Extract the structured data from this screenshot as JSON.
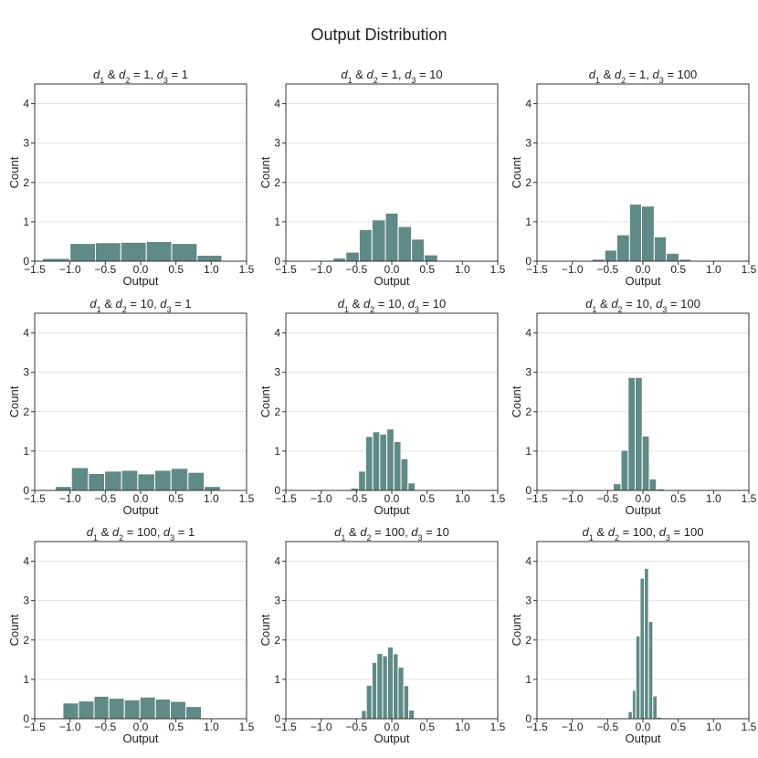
{
  "figure_title": "Output Distribution",
  "colors": {
    "bar": "#5f8a86",
    "bar_edge": "#ffffff",
    "grid": "#e3e3e3",
    "frame": "#333333"
  },
  "chart_data": [
    {
      "type": "bar",
      "title_parts": [
        "1",
        "1",
        "1"
      ],
      "title": "d1 & d2 = 1, d3 = 1",
      "xlabel": "Output",
      "ylabel": "Count",
      "xlim": [
        -1.5,
        1.5
      ],
      "ylim": [
        0,
        4.5
      ],
      "xticks": [
        -1.5,
        -1.0,
        -0.5,
        0.0,
        0.5,
        1.0,
        1.5
      ],
      "yticks": [
        0,
        1,
        2,
        3,
        4
      ],
      "bin_edges": [
        -1.39,
        -1.0,
        -0.64,
        -0.28,
        0.08,
        0.44,
        0.8,
        1.15,
        1.34
      ],
      "values": [
        0.07,
        0.45,
        0.47,
        0.48,
        0.5,
        0.45,
        0.15,
        0.02
      ]
    },
    {
      "type": "bar",
      "title_parts": [
        "1",
        "1",
        "10"
      ],
      "title": "d1 & d2 = 1, d3 = 10",
      "xlabel": "Output",
      "ylabel": "Count",
      "xlim": [
        -1.5,
        1.5
      ],
      "ylim": [
        0,
        4.5
      ],
      "xticks": [
        -1.5,
        -1.0,
        -0.5,
        0.0,
        0.5,
        1.0,
        1.5
      ],
      "yticks": [
        0,
        1,
        2,
        3,
        4
      ],
      "bin_edges": [
        -0.83,
        -0.65,
        -0.46,
        -0.28,
        -0.09,
        0.09,
        0.28,
        0.46,
        0.65,
        0.83
      ],
      "values": [
        0.08,
        0.23,
        0.8,
        1.05,
        1.22,
        0.88,
        0.56,
        0.16,
        0.02
      ]
    },
    {
      "type": "bar",
      "title_parts": [
        "1",
        "1",
        "100"
      ],
      "title": "d1 & d2 = 1, d3 = 100",
      "xlabel": "Output",
      "ylabel": "Count",
      "xlim": [
        -1.5,
        1.5
      ],
      "ylim": [
        0,
        4.5
      ],
      "xticks": [
        -1.5,
        -1.0,
        -0.5,
        0.0,
        0.5,
        1.0,
        1.5
      ],
      "yticks": [
        0,
        1,
        2,
        3,
        4
      ],
      "bin_edges": [
        -0.72,
        -0.54,
        -0.37,
        -0.19,
        -0.02,
        0.16,
        0.33,
        0.51,
        0.68,
        0.86
      ],
      "values": [
        0.05,
        0.28,
        0.67,
        1.45,
        1.4,
        0.62,
        0.2,
        0.05,
        0.02
      ]
    },
    {
      "type": "bar",
      "title_parts": [
        "10",
        "10",
        "1"
      ],
      "title": "d1 & d2 = 10, d3 = 1",
      "xlabel": "Output",
      "ylabel": "Count",
      "xlim": [
        -1.5,
        1.5
      ],
      "ylim": [
        0,
        4.5
      ],
      "xticks": [
        -1.5,
        -1.0,
        -0.5,
        0.0,
        0.5,
        1.0,
        1.5
      ],
      "yticks": [
        0,
        1,
        2,
        3,
        4
      ],
      "bin_edges": [
        -1.21,
        -0.98,
        -0.74,
        -0.51,
        -0.27,
        -0.04,
        0.2,
        0.43,
        0.67,
        0.9,
        1.13,
        1.27
      ],
      "values": [
        0.1,
        0.58,
        0.43,
        0.49,
        0.51,
        0.42,
        0.51,
        0.56,
        0.46,
        0.1,
        0.02
      ]
    },
    {
      "type": "bar",
      "title_parts": [
        "10",
        "10",
        "10"
      ],
      "title": "d1 & d2 = 10, d3 = 10",
      "xlabel": "Output",
      "ylabel": "Count",
      "xlim": [
        -1.5,
        1.5
      ],
      "ylim": [
        0,
        4.5
      ],
      "xticks": [
        -1.5,
        -1.0,
        -0.5,
        0.0,
        0.5,
        1.0,
        1.5
      ],
      "yticks": [
        0,
        1,
        2,
        3,
        4
      ],
      "bin_edges": [
        -0.58,
        -0.47,
        -0.37,
        -0.27,
        -0.17,
        -0.07,
        0.03,
        0.13,
        0.23,
        0.33,
        0.43
      ],
      "values": [
        0.06,
        0.49,
        1.37,
        1.49,
        1.43,
        1.56,
        1.24,
        0.8,
        0.19,
        0.02
      ]
    },
    {
      "type": "bar",
      "title_parts": [
        "10",
        "10",
        "100"
      ],
      "title": "d1 & d2 = 10, d3 = 100",
      "xlabel": "Output",
      "ylabel": "Count",
      "xlim": [
        -1.5,
        1.5
      ],
      "ylim": [
        0,
        4.5
      ],
      "xticks": [
        -1.5,
        -1.0,
        -0.5,
        0.0,
        0.5,
        1.0,
        1.5
      ],
      "yticks": [
        0,
        1,
        2,
        3,
        4
      ],
      "bin_edges": [
        -0.42,
        -0.31,
        -0.21,
        -0.11,
        -0.01,
        0.09,
        0.19,
        0.3
      ],
      "values": [
        0.17,
        1.02,
        2.87,
        2.87,
        1.38,
        0.29,
        0.04
      ]
    },
    {
      "type": "bar",
      "title_parts": [
        "100",
        "100",
        "1"
      ],
      "title": "d1 & d2 = 100, d3 = 1",
      "xlabel": "Output",
      "ylabel": "Count",
      "xlim": [
        -1.5,
        1.5
      ],
      "ylim": [
        0,
        4.5
      ],
      "xticks": [
        -1.5,
        -1.0,
        -0.5,
        0.0,
        0.5,
        1.0,
        1.5
      ],
      "yticks": [
        0,
        1,
        2,
        3,
        4
      ],
      "bin_edges": [
        -1.21,
        -1.1,
        -0.88,
        -0.66,
        -0.45,
        -0.23,
        -0.01,
        0.21,
        0.42,
        0.64,
        0.86,
        1.07
      ],
      "values": [
        0.02,
        0.4,
        0.45,
        0.57,
        0.52,
        0.48,
        0.55,
        0.5,
        0.44,
        0.31,
        0.02
      ]
    },
    {
      "type": "bar",
      "title_parts": [
        "100",
        "100",
        "10"
      ],
      "title": "d1 & d2 = 100, d3 = 10",
      "xlabel": "Output",
      "ylabel": "Count",
      "xlim": [
        -1.5,
        1.5
      ],
      "ylim": [
        0,
        4.5
      ],
      "xticks": [
        -1.5,
        -1.0,
        -0.5,
        0.0,
        0.5,
        1.0,
        1.5
      ],
      "yticks": [
        0,
        1,
        2,
        3,
        4
      ],
      "bin_edges": [
        -0.43,
        -0.36,
        -0.28,
        -0.21,
        -0.13,
        -0.06,
        0.02,
        0.09,
        0.17,
        0.24,
        0.32,
        0.39
      ],
      "values": [
        0.21,
        0.85,
        1.43,
        1.66,
        1.6,
        1.82,
        1.65,
        1.31,
        0.84,
        0.22,
        0.02
      ]
    },
    {
      "type": "bar",
      "title_parts": [
        "100",
        "100",
        "100"
      ],
      "title": "d1 & d2 = 100, d3 = 100",
      "xlabel": "Output",
      "ylabel": "Count",
      "xlim": [
        -1.5,
        1.5
      ],
      "ylim": [
        0,
        4.5
      ],
      "xticks": [
        -1.5,
        -1.0,
        -0.5,
        0.0,
        0.5,
        1.0,
        1.5
      ],
      "yticks": [
        0,
        1,
        2,
        3,
        4
      ],
      "bin_edges": [
        -0.21,
        -0.15,
        -0.1,
        -0.04,
        0.02,
        0.08,
        0.14,
        0.2,
        0.26
      ],
      "values": [
        0.18,
        0.72,
        2.1,
        3.57,
        3.82,
        2.47,
        0.58,
        0.04
      ]
    }
  ]
}
